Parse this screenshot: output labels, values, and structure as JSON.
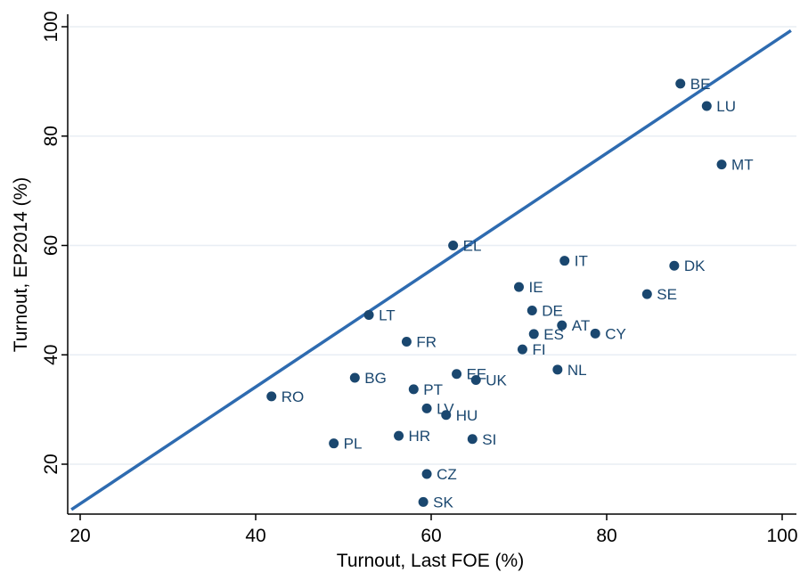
{
  "chart_data": {
    "type": "scatter",
    "title": "",
    "xlabel": "Turnout, Last FOE (%)",
    "ylabel": "Turnout, EP2014 (%)",
    "xlim": [
      19,
      101
    ],
    "ylim": [
      11,
      102
    ],
    "xticks": [
      20,
      40,
      60,
      80,
      100
    ],
    "yticks": [
      20,
      40,
      60,
      80,
      100
    ],
    "grid": true,
    "legend": "none",
    "colors": {
      "points": "#1a476f",
      "line": "#2e6bb0",
      "grid": "#e8eef4",
      "axis": "#000000"
    },
    "reference_line": {
      "x": [
        19,
        101
      ],
      "y": [
        11.7,
        99.3
      ]
    },
    "points": [
      {
        "label": "BE",
        "x": 88.4,
        "y": 89.6
      },
      {
        "label": "LU",
        "x": 91.4,
        "y": 85.5
      },
      {
        "label": "MT",
        "x": 93.1,
        "y": 74.8
      },
      {
        "label": "EL",
        "x": 62.5,
        "y": 60.0
      },
      {
        "label": "IT",
        "x": 75.2,
        "y": 57.2
      },
      {
        "label": "DK",
        "x": 87.7,
        "y": 56.3
      },
      {
        "label": "IE",
        "x": 70.0,
        "y": 52.4
      },
      {
        "label": "SE",
        "x": 84.6,
        "y": 51.1
      },
      {
        "label": "DE",
        "x": 71.5,
        "y": 48.1
      },
      {
        "label": "LT",
        "x": 52.9,
        "y": 47.3
      },
      {
        "label": "AT",
        "x": 74.9,
        "y": 45.4
      },
      {
        "label": "ES",
        "x": 71.7,
        "y": 43.8
      },
      {
        "label": "CY",
        "x": 78.7,
        "y": 43.9
      },
      {
        "label": "FR",
        "x": 57.2,
        "y": 42.4
      },
      {
        "label": "FI",
        "x": 70.4,
        "y": 41.0
      },
      {
        "label": "NL",
        "x": 74.4,
        "y": 37.3
      },
      {
        "label": "EE",
        "x": 62.9,
        "y": 36.5
      },
      {
        "label": "BG",
        "x": 51.3,
        "y": 35.8
      },
      {
        "label": "UK",
        "x": 65.1,
        "y": 35.4
      },
      {
        "label": "PT",
        "x": 58.0,
        "y": 33.7
      },
      {
        "label": "RO",
        "x": 41.8,
        "y": 32.4
      },
      {
        "label": "LV",
        "x": 59.5,
        "y": 30.2
      },
      {
        "label": "HU",
        "x": 61.7,
        "y": 29.0
      },
      {
        "label": "HR",
        "x": 56.3,
        "y": 25.2
      },
      {
        "label": "SI",
        "x": 64.7,
        "y": 24.6
      },
      {
        "label": "PL",
        "x": 48.9,
        "y": 23.8
      },
      {
        "label": "CZ",
        "x": 59.5,
        "y": 18.2
      },
      {
        "label": "SK",
        "x": 59.1,
        "y": 13.1
      }
    ]
  }
}
